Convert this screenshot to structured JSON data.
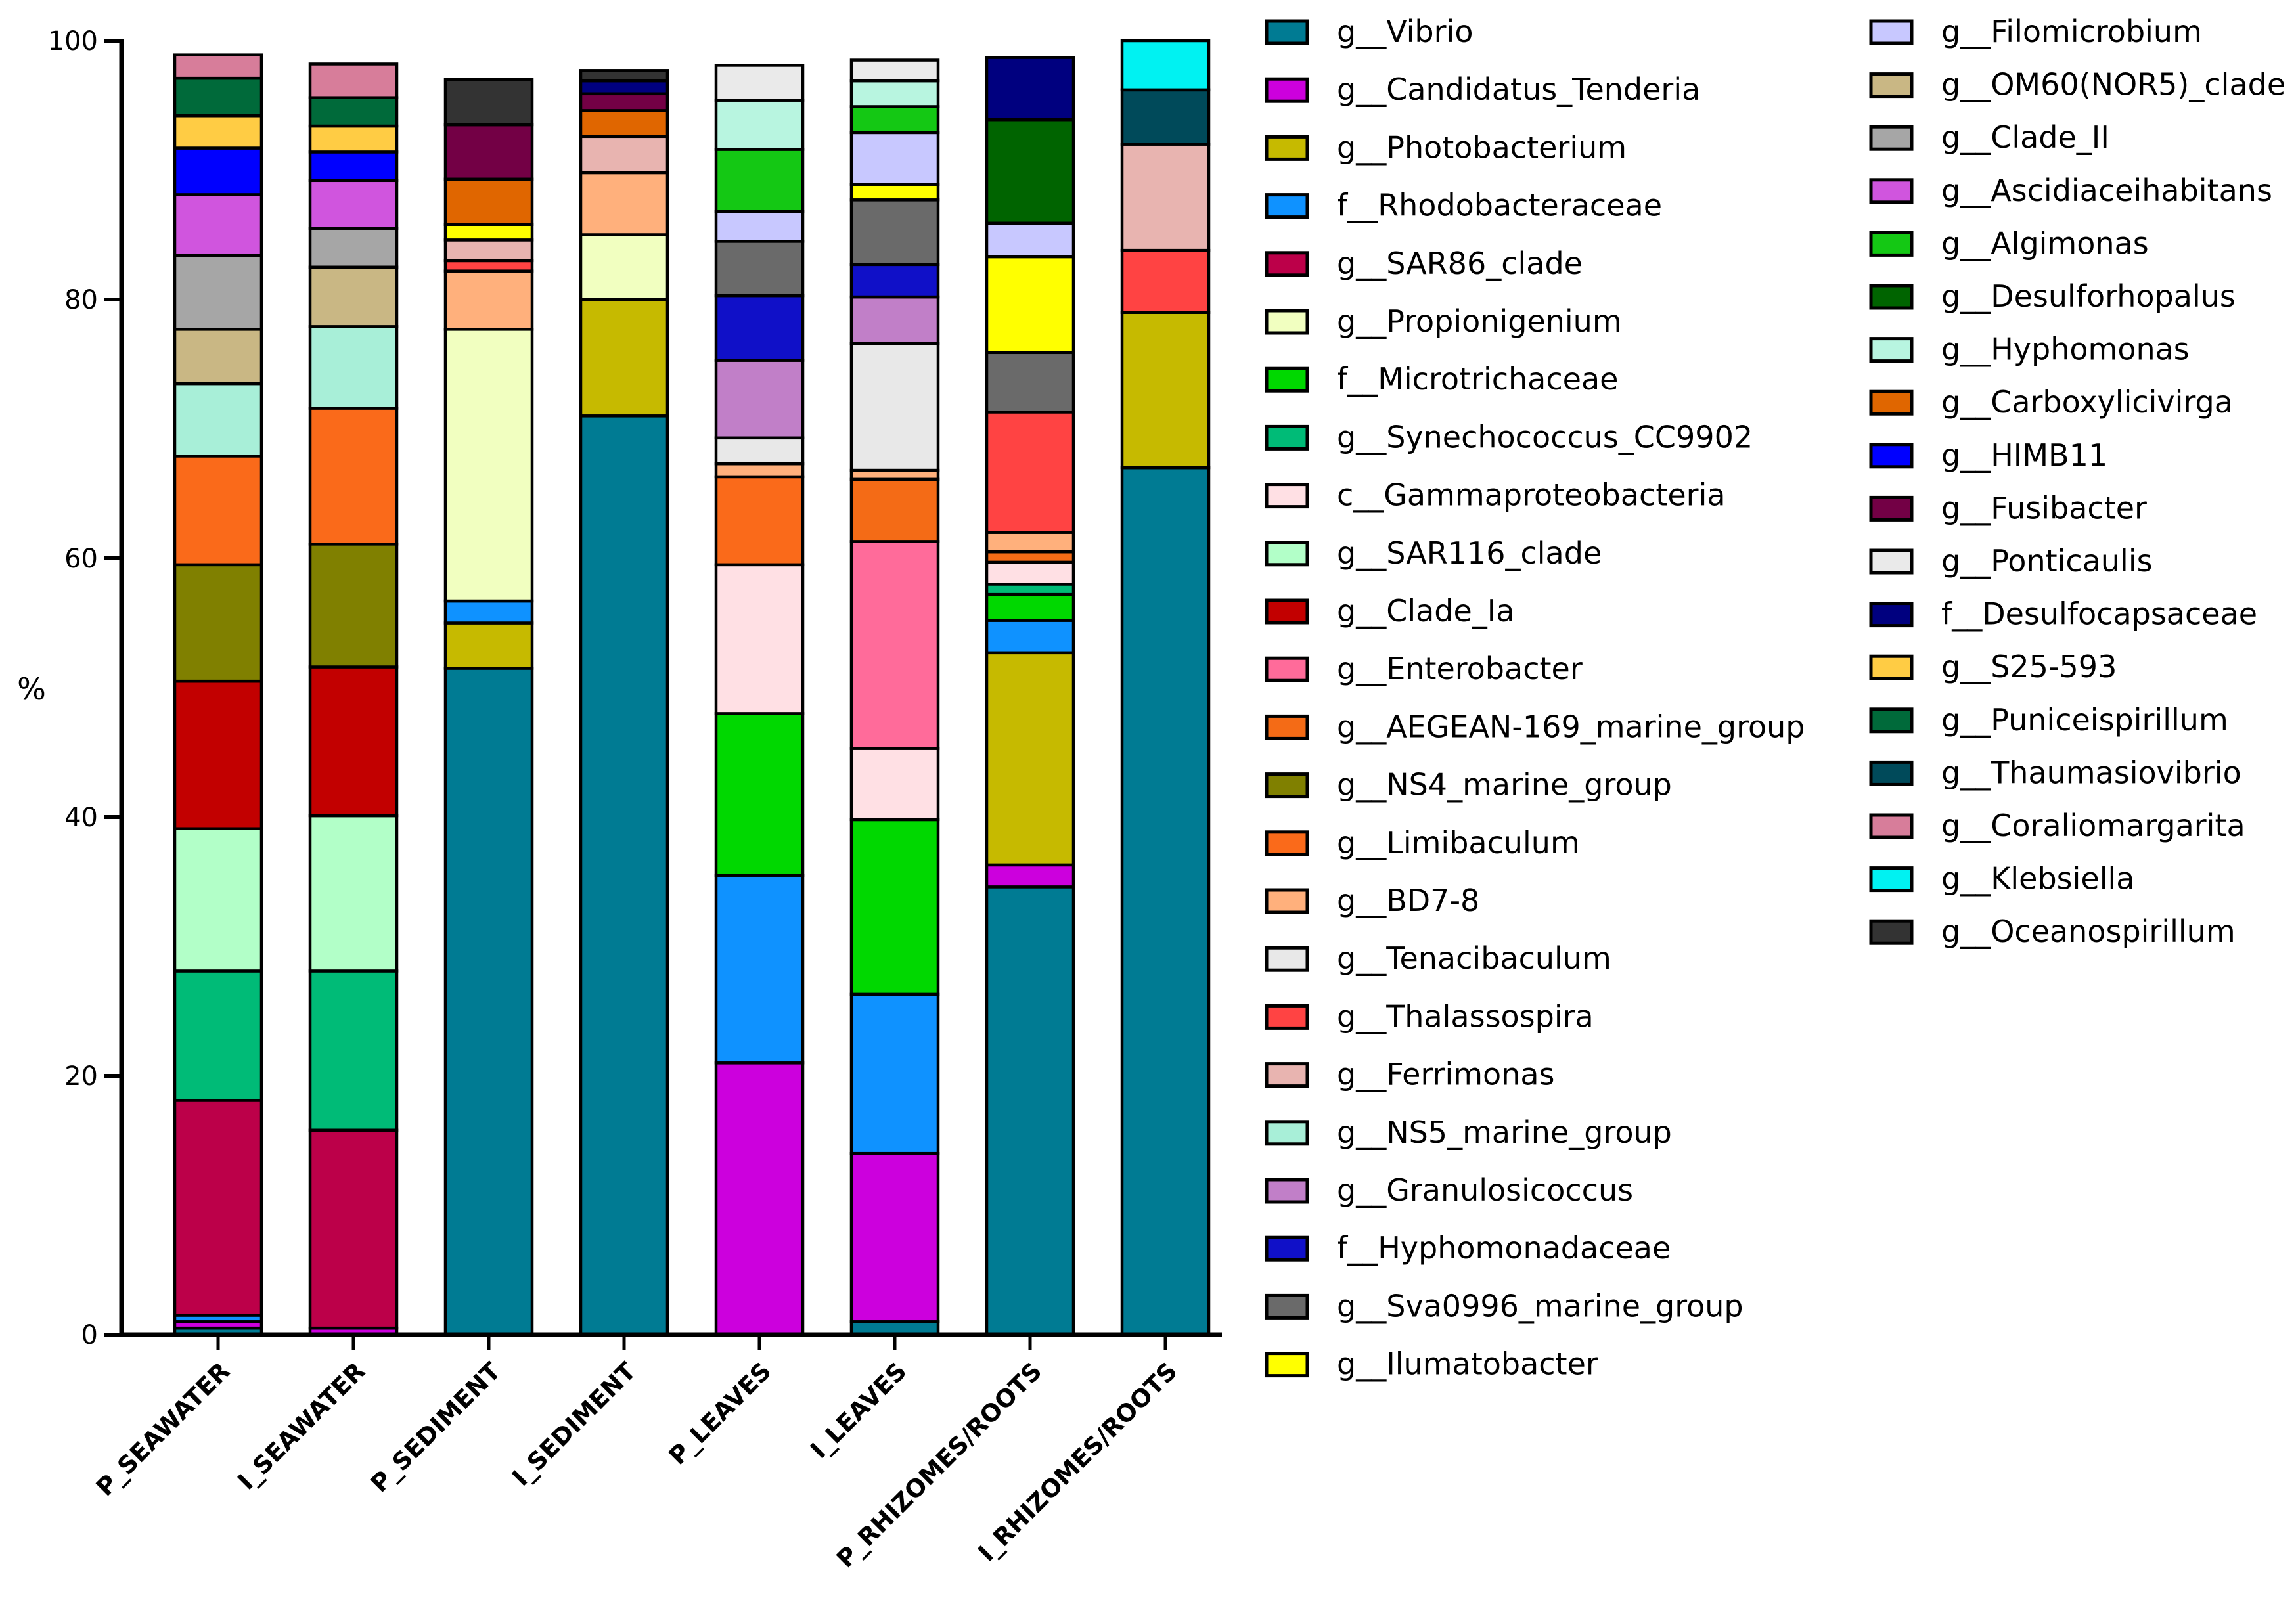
{
  "chart_data": {
    "type": "stacked-bar",
    "ylabel": "%",
    "ylim": [
      0,
      100
    ],
    "yticks": [
      "0",
      "20",
      "40",
      "60",
      "80",
      "100"
    ],
    "categories": [
      "P_SEAWATER",
      "I_SEAWATER",
      "P_SEDIMENT",
      "I_SEDIMENT",
      "P_LEAVES",
      "I_LEAVES",
      "P_RHIZOMES/ROOTS",
      "I_RHIZOMES/ROOTS"
    ],
    "legend_position": "right",
    "series": [
      {
        "name": "g__Vibrio",
        "color": "#007B93",
        "values": [
          0.5,
          0,
          51.5,
          71,
          0,
          1,
          34.6,
          67
        ]
      },
      {
        "name": "g__Candidatus_Tenderia",
        "color": "#CC00DD",
        "values": [
          0.5,
          0.5,
          0,
          0,
          21,
          13,
          1.7,
          0
        ]
      },
      {
        "name": "g__Photobacterium",
        "color": "#C6BA00",
        "values": [
          0,
          0,
          3.5,
          9,
          0,
          0,
          16.4,
          12
        ]
      },
      {
        "name": "f__Rhodobacteraceae",
        "color": "#0F92FF",
        "values": [
          0.5,
          0,
          1.7,
          0,
          14.5,
          12.3,
          2.5,
          0
        ]
      },
      {
        "name": "g__SAR86_clade",
        "color": "#BC0049",
        "values": [
          16.6,
          15.3,
          0,
          0,
          0,
          0,
          0,
          0
        ]
      },
      {
        "name": "g__Propionigenium",
        "color": "#F1FFC0",
        "values": [
          0,
          0,
          21,
          5,
          0,
          0,
          0,
          0
        ]
      },
      {
        "name": "f__Microtrichaceae",
        "color": "#00D800",
        "values": [
          0,
          0,
          0,
          0,
          12.5,
          13.5,
          2,
          0
        ]
      },
      {
        "name": "g__Synechococcus_CC9902",
        "color": "#00BB77",
        "values": [
          10,
          12.3,
          0,
          0,
          0,
          0,
          0.8,
          0
        ]
      },
      {
        "name": "c__Gammaproteobacteria",
        "color": "#FFE0E4",
        "values": [
          0,
          0,
          0,
          0,
          11.5,
          5.5,
          1.7,
          0
        ]
      },
      {
        "name": "g__SAR116_clade",
        "color": "#B2FFC8",
        "values": [
          11,
          12,
          0,
          0,
          0,
          0,
          0,
          0
        ]
      },
      {
        "name": "g__Clade_Ia",
        "color": "#C20000",
        "values": [
          11.4,
          11.5,
          0,
          0,
          0,
          0,
          0,
          0
        ]
      },
      {
        "name": "g__Enterobacter",
        "color": "#FF6B9A",
        "values": [
          0,
          0,
          0,
          0,
          0,
          16,
          0,
          0
        ]
      },
      {
        "name": "g__AEGEAN-169_marine_group",
        "color": "#F46B16",
        "values": [
          0,
          0,
          0,
          0,
          0,
          4.8,
          0.8,
          0
        ]
      },
      {
        "name": "g__NS4_marine_group",
        "color": "#808000",
        "values": [
          9,
          9.5,
          0,
          0,
          0,
          0,
          0,
          0
        ]
      },
      {
        "name": "g__Limibaculum",
        "color": "#FA6A1A",
        "values": [
          8.4,
          10.5,
          0,
          0,
          6.8,
          0,
          0,
          0
        ]
      },
      {
        "name": "g__BD7-8",
        "color": "#FFB07C",
        "values": [
          0,
          0,
          4.5,
          4.8,
          1,
          0.7,
          1.5,
          0
        ]
      },
      {
        "name": "g__Tenacibaculum",
        "color": "#E8E8E8",
        "values": [
          0,
          0,
          0,
          0,
          2,
          9.8,
          0,
          0
        ]
      },
      {
        "name": "g__Thalassospira",
        "color": "#FF4343",
        "values": [
          0,
          0,
          0.8,
          0,
          0,
          0,
          9.3,
          4.8
        ]
      },
      {
        "name": "g__Ferrimonas",
        "color": "#E8B4B0",
        "values": [
          0,
          0,
          1.6,
          2.8,
          0,
          0,
          0,
          8.2
        ]
      },
      {
        "name": "g__NS5_marine_group",
        "color": "#A8EFD8",
        "values": [
          5.6,
          6.3,
          0,
          0,
          0,
          0,
          0,
          0
        ]
      },
      {
        "name": "g__Granulosicoccus",
        "color": "#C17FC8",
        "values": [
          0,
          0,
          0,
          0,
          6,
          3.6,
          0,
          0
        ]
      },
      {
        "name": "f__Hyphomonadaceae",
        "color": "#1010C8",
        "values": [
          0,
          0,
          0,
          0,
          5,
          2.5,
          0,
          0
        ]
      },
      {
        "name": "g__Sva0996_marine_group",
        "color": "#6A6A6A",
        "values": [
          0,
          0,
          0,
          0,
          4.2,
          5,
          4.6,
          0
        ]
      },
      {
        "name": "g__Ilumatobacter",
        "color": "#FFFF00",
        "values": [
          0,
          0,
          1.2,
          0,
          0,
          1.2,
          7.4,
          0
        ]
      },
      {
        "name": "g__Filomicrobium",
        "color": "#C8C8FF",
        "values": [
          0,
          0,
          0,
          0,
          2.3,
          4,
          2.6,
          0
        ]
      },
      {
        "name": "g__OM60(NOR5)_clade",
        "color": "#C9B784",
        "values": [
          4.2,
          4.6,
          0,
          0,
          0,
          0,
          0,
          0
        ]
      },
      {
        "name": "g__Clade_II",
        "color": "#A6A6A6",
        "values": [
          5.7,
          3,
          0,
          0,
          0,
          0,
          0,
          0
        ]
      },
      {
        "name": "g__Ascidiaceihabitans",
        "color": "#D055DE",
        "values": [
          4.7,
          3.7,
          0,
          0,
          0,
          0,
          0,
          0
        ]
      },
      {
        "name": "g__Algimonas",
        "color": "#14C814",
        "values": [
          0,
          0,
          0,
          0,
          4.8,
          2,
          0,
          0
        ]
      },
      {
        "name": "g__Desulforhopalus",
        "color": "#006400",
        "values": [
          0,
          0,
          0,
          0,
          0,
          0,
          8,
          0
        ]
      },
      {
        "name": "g__Hyphomonas",
        "color": "#B8F5E0",
        "values": [
          0,
          0,
          0,
          0,
          3.8,
          2,
          0,
          0
        ]
      },
      {
        "name": "g__Carboxylicivirga",
        "color": "#E06600",
        "values": [
          0,
          0,
          3.5,
          2,
          0,
          0,
          0,
          0
        ]
      },
      {
        "name": "g__HIMB11",
        "color": "#0000FF",
        "values": [
          3.6,
          2.2,
          0,
          0,
          0,
          0,
          0,
          0
        ]
      },
      {
        "name": "g__Fusibacter",
        "color": "#730045",
        "values": [
          0,
          0,
          4.2,
          1.3,
          0,
          0,
          0,
          0
        ]
      },
      {
        "name": "g__Ponticaulis",
        "color": "#EAEAEA",
        "values": [
          0,
          0,
          0,
          0,
          2.7,
          1.6,
          0,
          0
        ]
      },
      {
        "name": "f__Desulfocapsaceae",
        "color": "#00007F",
        "values": [
          0,
          0,
          0,
          1,
          0,
          0,
          4.8,
          0
        ]
      },
      {
        "name": "g__S25-593",
        "color": "#FFCC44",
        "values": [
          2.5,
          2,
          0,
          0,
          0,
          0,
          0,
          0
        ]
      },
      {
        "name": "g__Puniceispirillum",
        "color": "#006A3A",
        "values": [
          2.9,
          2.2,
          0,
          0,
          0,
          0,
          0,
          0
        ]
      },
      {
        "name": "g__Thaumasiovibrio",
        "color": "#004A5A",
        "values": [
          0,
          0,
          0,
          0,
          0,
          0,
          0,
          4.2
        ]
      },
      {
        "name": "g__Coraliomargarita",
        "color": "#D77D9A",
        "values": [
          1.8,
          2.6,
          0,
          0,
          0,
          0,
          0,
          0
        ]
      },
      {
        "name": "g__Klebsiella",
        "color": "#00F2F2",
        "values": [
          0,
          0,
          0,
          0,
          0,
          0,
          0,
          3.8
        ]
      },
      {
        "name": "g__Oceanospirillum",
        "color": "#333333",
        "values": [
          0,
          0,
          3.5,
          0.8,
          0,
          0,
          0,
          0
        ]
      }
    ]
  }
}
